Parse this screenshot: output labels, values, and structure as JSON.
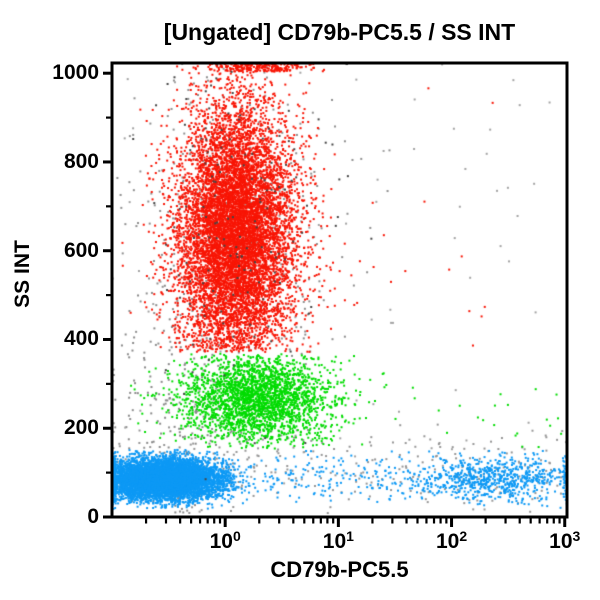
{
  "plot": {
    "title": "[Ungated] CD79b-PC5.5 / SS INT",
    "x_axis": {
      "label": "CD79b-PC5.5",
      "scale": "log",
      "log_min": -1,
      "log_max": 3.02,
      "tick_base": "10",
      "major_tick_exponents": [
        0,
        1,
        2,
        3
      ],
      "minor_tick_mantissas": [
        2,
        3,
        4,
        5,
        6,
        7,
        8,
        9
      ],
      "minor_tick_decades": [
        -1,
        0,
        1,
        2
      ]
    },
    "y_axis": {
      "label": "SS INT",
      "scale": "linear",
      "min": 0,
      "max": 1023,
      "major_ticks": [
        0,
        200,
        400,
        600,
        800,
        1000
      ],
      "minor_ticks": [
        100,
        300,
        500,
        700,
        900
      ]
    },
    "frame_color": "#000000",
    "background_color": "#ffffff"
  },
  "chart_data": {
    "type": "scatter",
    "subtype": "flow-cytometry-dot-plot",
    "title": "[Ungated] CD79b-PC5.5 / SS INT",
    "xlabel": "CD79b-PC5.5",
    "ylabel": "SS INT",
    "x_scale": "log10",
    "x_range": [
      0.1,
      1047
    ],
    "y_range": [
      0,
      1023
    ],
    "grid": false,
    "legend": false,
    "dot_size_px": 2,
    "population_colors": {
      "red": "#F81505",
      "green": "#00DC00",
      "blue": "#0D99F5",
      "gray": "#8F8F8F"
    },
    "populations": [
      {
        "name": "debris-gray-halo",
        "color": "#8F8F8F",
        "count": 430,
        "x": {
          "dist": "lognormal",
          "log_mean": 0.02,
          "log_sd": 0.5,
          "clip_min": -1,
          "clip_max": 3.02,
          "on_clip": "resample"
        },
        "y": {
          "dist": "normal",
          "mean": 620,
          "sd": 230,
          "clip_min": 5,
          "clip_max": 1023,
          "on_clip": "resample"
        }
      },
      {
        "name": "debris-gray-low-band",
        "color": "#969696",
        "count": 300,
        "x": {
          "dist": "uniform_log",
          "log_min": -1,
          "log_max": 3.02
        },
        "y": {
          "dist": "normal",
          "mean": 110,
          "sd": 55,
          "clip_min": 3,
          "clip_max": 210,
          "on_clip": "resample"
        }
      },
      {
        "name": "debris-gray-left",
        "color": "#8A8A8A",
        "count": 200,
        "x": {
          "dist": "lognormal",
          "log_mean": -0.45,
          "log_sd": 0.3,
          "clip_min": -1,
          "clip_max": 3.02,
          "on_clip": "pile"
        },
        "y": {
          "dist": "normal",
          "mean": 270,
          "sd": 130,
          "clip_min": 5,
          "clip_max": 620,
          "on_clip": "resample"
        }
      },
      {
        "name": "debris-gray-sparse",
        "color": "#A3A3A3",
        "count": 80,
        "x": {
          "dist": "uniform_log",
          "log_min": -1,
          "log_max": 3.02
        },
        "y": {
          "dist": "uniform",
          "min": 0,
          "max": 1023
        }
      },
      {
        "name": "ss-low-blue-left",
        "color": "#0D99F5",
        "count": 7000,
        "x": {
          "dist": "lognormal",
          "log_mean": -0.55,
          "log_sd": 0.27,
          "clip_min": -1,
          "clip_max": 3.02,
          "on_clip": "pile"
        },
        "y": {
          "dist": "normal",
          "mean": 85,
          "sd": 23,
          "clip_min": 18,
          "clip_max": 152,
          "on_clip": "resample"
        }
      },
      {
        "name": "ss-low-blue-right",
        "color": "#0D99F5",
        "count": 800,
        "x": {
          "dist": "lognormal",
          "log_mean": 2.35,
          "log_sd": 0.38,
          "clip_min": 1.35,
          "clip_max": 3.02,
          "on_clip": "pile"
        },
        "y": {
          "dist": "normal",
          "mean": 85,
          "sd": 26,
          "clip_min": 15,
          "clip_max": 150,
          "on_clip": "resample"
        }
      },
      {
        "name": "ss-low-blue-mid",
        "color": "#0D99F5",
        "count": 140,
        "x": {
          "dist": "uniform_log",
          "log_min": 0.35,
          "log_max": 1.5
        },
        "y": {
          "dist": "normal",
          "mean": 88,
          "sd": 28,
          "clip_min": 15,
          "clip_max": 150,
          "on_clip": "resample"
        }
      },
      {
        "name": "ss-mid-green",
        "color": "#00DC00",
        "count": 2600,
        "x": {
          "dist": "lognormal",
          "log_mean": 0.28,
          "log_sd": 0.33,
          "clip_min": -1,
          "clip_max": 3.02,
          "on_clip": "resample"
        },
        "y": {
          "dist": "normal",
          "mean": 268,
          "sd": 52,
          "clip_min": 154,
          "clip_max": 368,
          "on_clip": "resample"
        }
      },
      {
        "name": "green-right-sparse",
        "color": "#00DC00",
        "count": 26,
        "x": {
          "dist": "uniform_log",
          "log_min": 1.1,
          "log_max": 3.0
        },
        "y": {
          "dist": "normal",
          "mean": 225,
          "sd": 55,
          "clip_min": 154,
          "clip_max": 340,
          "on_clip": "resample"
        }
      },
      {
        "name": "ss-high-red",
        "color": "#F81505",
        "count": 9000,
        "x": {
          "dist": "lognormal",
          "log_mean": 0.1,
          "log_sd": 0.26,
          "clip_min": -1,
          "clip_max": 3.02,
          "on_clip": "resample"
        },
        "y": {
          "dist": "normal",
          "mean": 640,
          "sd": 150,
          "clip_min": 372,
          "clip_max": 1023,
          "on_clip": "resample"
        }
      },
      {
        "name": "red-top-pileup",
        "color": "#F81505",
        "count": 240,
        "x": {
          "dist": "lognormal",
          "log_mean": 0.3,
          "log_sd": 0.22,
          "clip_min": -1,
          "clip_max": 3.02,
          "on_clip": "resample"
        },
        "y": {
          "dist": "uniform",
          "min": 1004,
          "max": 1023
        }
      },
      {
        "name": "red-outliers",
        "color": "#F81505",
        "count": 22,
        "x": {
          "dist": "uniform_log",
          "log_min": 0.6,
          "log_max": 2.6
        },
        "y": {
          "dist": "normal",
          "mean": 520,
          "sd": 190,
          "clip_min": 372,
          "clip_max": 1023,
          "on_clip": "resample"
        }
      },
      {
        "name": "debris-dark-specks",
        "color": "#454545",
        "count": 150,
        "x": {
          "dist": "lognormal",
          "log_mean": 0.12,
          "log_sd": 0.42,
          "clip_min": -1,
          "clip_max": 3.02,
          "on_clip": "resample"
        },
        "y": {
          "dist": "normal",
          "mean": 690,
          "sd": 260,
          "clip_min": 5,
          "clip_max": 1023,
          "on_clip": "resample"
        }
      }
    ]
  }
}
